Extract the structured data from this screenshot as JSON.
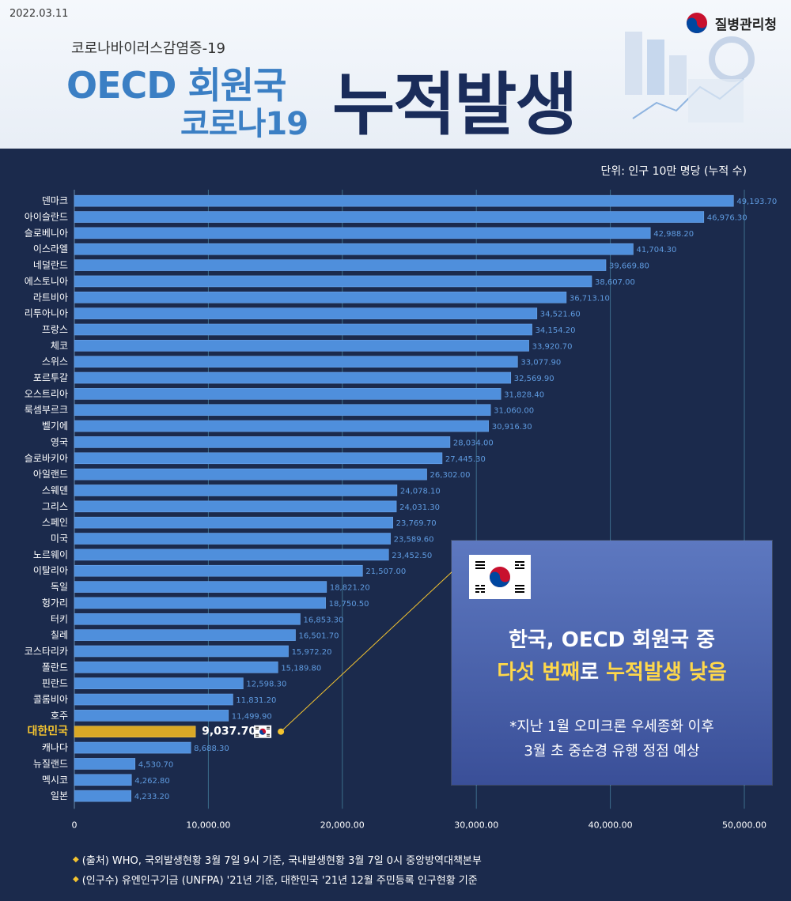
{
  "header": {
    "date": "2022.03.11",
    "agency": "질병관리청",
    "subtitle": "코로나바이러스감염증-19",
    "title_line1": "OECD 회원국",
    "title_line2": "코로나19",
    "title_main": "누적발생"
  },
  "unit": "단위: 인구 10만 명당 (누적 수)",
  "callout": {
    "line1": "한국, OECD 회원국 중",
    "line2_a": "다섯 번째",
    "line2_b": "로 ",
    "line2_c": "누적발생 낮음",
    "note1": "*지난 1월 오미크론 우세종화  이후",
    "note2": "3월 초 중순경 유행 정점 예상"
  },
  "footnotes": [
    "(출처) WHO, 국외발생현황 3월 7일 9시 기준, 국내발생현황 3월 7일 0시 중앙방역대책본부",
    "(인구수) 유엔인구기금 (UNFPA) '21년 기준, 대한민국 '21년 12월 주민등록 인구현황 기준"
  ],
  "colors": {
    "bar": "#4f8fdc",
    "highlight": "#d9a826",
    "background": "#1b2a4c",
    "accent": "#3b7fc4"
  },
  "icons": {
    "agency_logo": "taegeuk-logo-icon",
    "flag": "korea-flag-icon"
  },
  "chart_data": {
    "type": "bar",
    "orientation": "horizontal",
    "categories": [
      "덴마크",
      "아이슬란드",
      "슬로베니아",
      "이스라엘",
      "네덜란드",
      "에스토니아",
      "라트비아",
      "리투아니아",
      "프랑스",
      "체코",
      "스위스",
      "포르투갈",
      "오스트리아",
      "룩셈부르크",
      "벨기에",
      "영국",
      "슬로바키아",
      "아일랜드",
      "스웨덴",
      "그리스",
      "스페인",
      "미국",
      "노르웨이",
      "이탈리아",
      "독일",
      "헝가리",
      "터키",
      "칠레",
      "코스타리카",
      "폴란드",
      "핀란드",
      "콜롬비아",
      "호주",
      "대한민국",
      "캐나다",
      "뉴질랜드",
      "멕시코",
      "일본"
    ],
    "values": [
      49193.7,
      46976.3,
      42988.2,
      41704.3,
      39669.8,
      38607.0,
      36713.1,
      34521.6,
      34154.2,
      33920.7,
      33077.9,
      32569.9,
      31828.4,
      31060.0,
      30916.3,
      28034.0,
      27445.3,
      26302.0,
      24078.1,
      24031.3,
      23769.7,
      23589.6,
      23452.5,
      21507.0,
      18821.2,
      18750.5,
      16853.3,
      16501.7,
      15972.2,
      15189.8,
      12598.3,
      11831.2,
      11499.9,
      9037.7,
      8688.3,
      4530.7,
      4262.8,
      4233.2
    ],
    "value_labels": [
      "49,193.70",
      "46,976.30",
      "42,988.20",
      "41,704.30",
      "39,669.80",
      "38,607.00",
      "36,713.10",
      "34,521.60",
      "34,154.20",
      "33,920.70",
      "33,077.90",
      "32,569.90",
      "31,828.40",
      "31,060.00",
      "30,916.30",
      "28,034.00",
      "27,445.30",
      "26,302.00",
      "24,078.10",
      "24,031.30",
      "23,769.70",
      "23,589.60",
      "23,452.50",
      "21,507.00",
      "18,821.20",
      "18,750.50",
      "16,853.30",
      "16,501.70",
      "15,972.20",
      "15,189.80",
      "12,598.30",
      "11,831.20",
      "11,499.90",
      "9,037.70",
      "8,688.30",
      "4,530.70",
      "4,262.80",
      "4,233.20"
    ],
    "highlight": "대한민국",
    "xlim": [
      0,
      50000
    ],
    "xticks": [
      0,
      10000,
      20000,
      30000,
      40000,
      50000
    ],
    "xtick_labels": [
      "0",
      "10,000.00",
      "20,000.00",
      "30,000.00",
      "40,000.00",
      "50,000.00"
    ],
    "grid": true
  }
}
